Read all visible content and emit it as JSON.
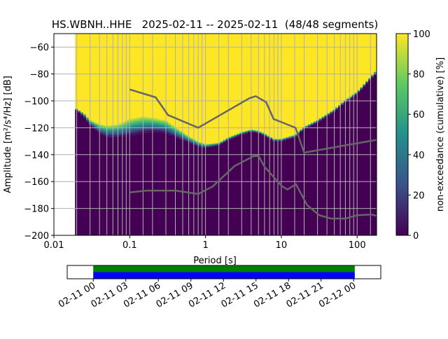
{
  "title": "HS.WBNH..HHE   2025-02-11 -- 2025-02-11  (48/48 segments)",
  "chart_data": {
    "type": "heatmap",
    "title": "HS.WBNH..HHE   2025-02-11 -- 2025-02-11  (48/48 segments)",
    "xlabel": "Period [s]",
    "ylabel": "Amplitude [m²/s⁴/Hz] [dB]",
    "xscale": "log",
    "xlim": [
      0.01,
      180
    ],
    "ylim": [
      -200,
      -50
    ],
    "xticks": [
      0.01,
      0.1,
      1,
      10,
      100
    ],
    "xtick_labels": [
      "0.01",
      "0.1",
      "1",
      "10",
      "100"
    ],
    "yticks": [
      -200,
      -180,
      -160,
      -140,
      -120,
      -100,
      -80,
      -60
    ],
    "ytick_labels": [
      "−200",
      "−180",
      "−160",
      "−140",
      "−120",
      "−100",
      "−80",
      "−60"
    ],
    "grid": true,
    "colorbar": {
      "label": "non-exceedance (cumulative) [%]",
      "range": [
        0,
        100
      ],
      "ticks": [
        0,
        20,
        40,
        60,
        80,
        100
      ],
      "tick_labels": [
        "0",
        "20",
        "40",
        "60",
        "80",
        "100"
      ],
      "colormap": [
        "#440154",
        "#3b528b",
        "#21918c",
        "#5ec962",
        "#fde725"
      ]
    },
    "ppsd": {
      "periods": [
        0.019,
        0.025,
        0.03,
        0.04,
        0.05,
        0.07,
        0.1,
        0.15,
        0.2,
        0.3,
        0.4,
        0.6,
        0.8,
        1,
        1.5,
        2,
        3,
        4,
        5,
        6,
        8,
        10,
        15,
        20,
        30,
        50,
        70,
        100,
        150,
        180
      ],
      "level_0pct_db": [
        -106,
        -112,
        -118,
        -124,
        -127,
        -127,
        -126,
        -124,
        -123,
        -124,
        -127,
        -131,
        -134,
        -135,
        -133,
        -129,
        -125,
        -123,
        -124,
        -126,
        -130,
        -130,
        -127,
        -121,
        -116,
        -108,
        -101,
        -95,
        -84,
        -79
      ],
      "level_100pct_db": [
        -105,
        -109,
        -114,
        -117,
        -118,
        -117,
        -113,
        -111,
        -112,
        -114,
        -119,
        -126,
        -130,
        -132,
        -131,
        -127,
        -123,
        -121,
        -122,
        -124,
        -128,
        -128,
        -125,
        -119,
        -114,
        -106,
        -99,
        -93,
        -82,
        -77
      ]
    },
    "nhnm": {
      "periods": [
        0.1,
        0.22,
        0.32,
        0.8,
        3.8,
        4.6,
        6.3,
        7.9,
        15.4,
        20,
        180
      ],
      "db": [
        -91.5,
        -97.4,
        -110.5,
        -120,
        -98,
        -96.5,
        -101,
        -113.5,
        -120,
        -138.5,
        -129
      ]
    },
    "nlnm": {
      "periods": [
        0.1,
        0.17,
        0.4,
        0.8,
        1.24,
        2.4,
        4.3,
        5,
        6,
        10,
        12,
        15.6,
        21.9,
        31.6,
        45,
        70,
        101,
        154,
        180
      ],
      "db": [
        -168,
        -166.7,
        -166.7,
        -169.2,
        -163.7,
        -148.6,
        -141.1,
        -141,
        -149,
        -163,
        -166,
        -162,
        -177.5,
        -185,
        -187.5,
        -187.5,
        -185,
        -184.5,
        -185.5
      ]
    },
    "coverage": {
      "tick_labels": [
        "02-11 00",
        "02-11 03",
        "02-11 06",
        "02-11 09",
        "02-11 12",
        "02-11 15",
        "02-11 18",
        "02-11 21",
        "02-12 00"
      ],
      "range_hours": [
        -2.4,
        26.5
      ],
      "data_hours": [
        0,
        24.1
      ],
      "colors": {
        "used": "#008000",
        "available": "#0000ff"
      }
    }
  }
}
